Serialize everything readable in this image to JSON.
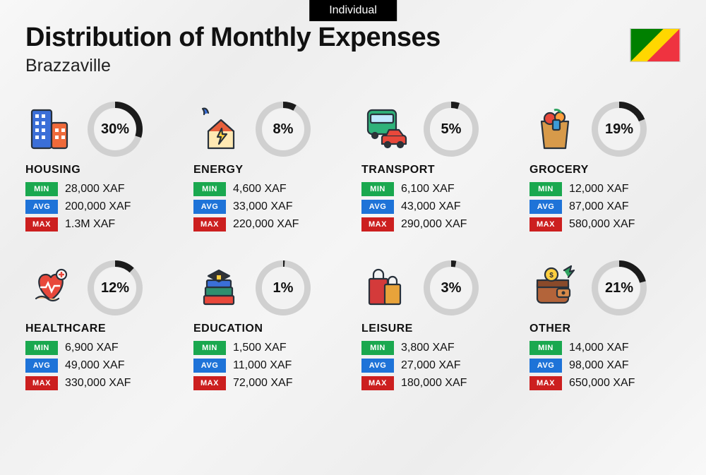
{
  "top_label": "Individual",
  "title": "Distribution of Monthly Expenses",
  "subtitle": "Brazzaville",
  "flag": {
    "top_left_color": "#008000",
    "stripe_color": "#ffd700",
    "bottom_right_color": "#ef3340"
  },
  "donut_style": {
    "size": 78,
    "stroke_width": 9,
    "track_color": "#d0d0d0",
    "progress_color": "#1b1b1b",
    "inner_bg": "#f2f2f2"
  },
  "stat_labels": {
    "min": "MIN",
    "avg": "AVG",
    "max": "MAX"
  },
  "tag_colors": {
    "min": "#1aa84f",
    "avg": "#1e73d8",
    "max": "#cc1f1f"
  },
  "categories": [
    {
      "key": "housing",
      "label": "HOUSING",
      "percent": 30,
      "percent_text": "30%",
      "min": "28,000 XAF",
      "avg": "200,000 XAF",
      "max": "1.3M XAF",
      "icon": "buildings"
    },
    {
      "key": "energy",
      "label": "ENERGY",
      "percent": 8,
      "percent_text": "8%",
      "min": "4,600 XAF",
      "avg": "33,000 XAF",
      "max": "220,000 XAF",
      "icon": "house-bolt"
    },
    {
      "key": "transport",
      "label": "TRANSPORT",
      "percent": 5,
      "percent_text": "5%",
      "min": "6,100 XAF",
      "avg": "43,000 XAF",
      "max": "290,000 XAF",
      "icon": "bus-car"
    },
    {
      "key": "grocery",
      "label": "GROCERY",
      "percent": 19,
      "percent_text": "19%",
      "min": "12,000 XAF",
      "avg": "87,000 XAF",
      "max": "580,000 XAF",
      "icon": "grocery-bag"
    },
    {
      "key": "healthcare",
      "label": "HEALTHCARE",
      "percent": 12,
      "percent_text": "12%",
      "min": "6,900 XAF",
      "avg": "49,000 XAF",
      "max": "330,000 XAF",
      "icon": "heart-care"
    },
    {
      "key": "education",
      "label": "EDUCATION",
      "percent": 1,
      "percent_text": "1%",
      "min": "1,500 XAF",
      "avg": "11,000 XAF",
      "max": "72,000 XAF",
      "icon": "books-cap"
    },
    {
      "key": "leisure",
      "label": "LEISURE",
      "percent": 3,
      "percent_text": "3%",
      "min": "3,800 XAF",
      "avg": "27,000 XAF",
      "max": "180,000 XAF",
      "icon": "shopping-bags"
    },
    {
      "key": "other",
      "label": "OTHER",
      "percent": 21,
      "percent_text": "21%",
      "min": "14,000 XAF",
      "avg": "98,000 XAF",
      "max": "650,000 XAF",
      "icon": "wallet"
    }
  ]
}
